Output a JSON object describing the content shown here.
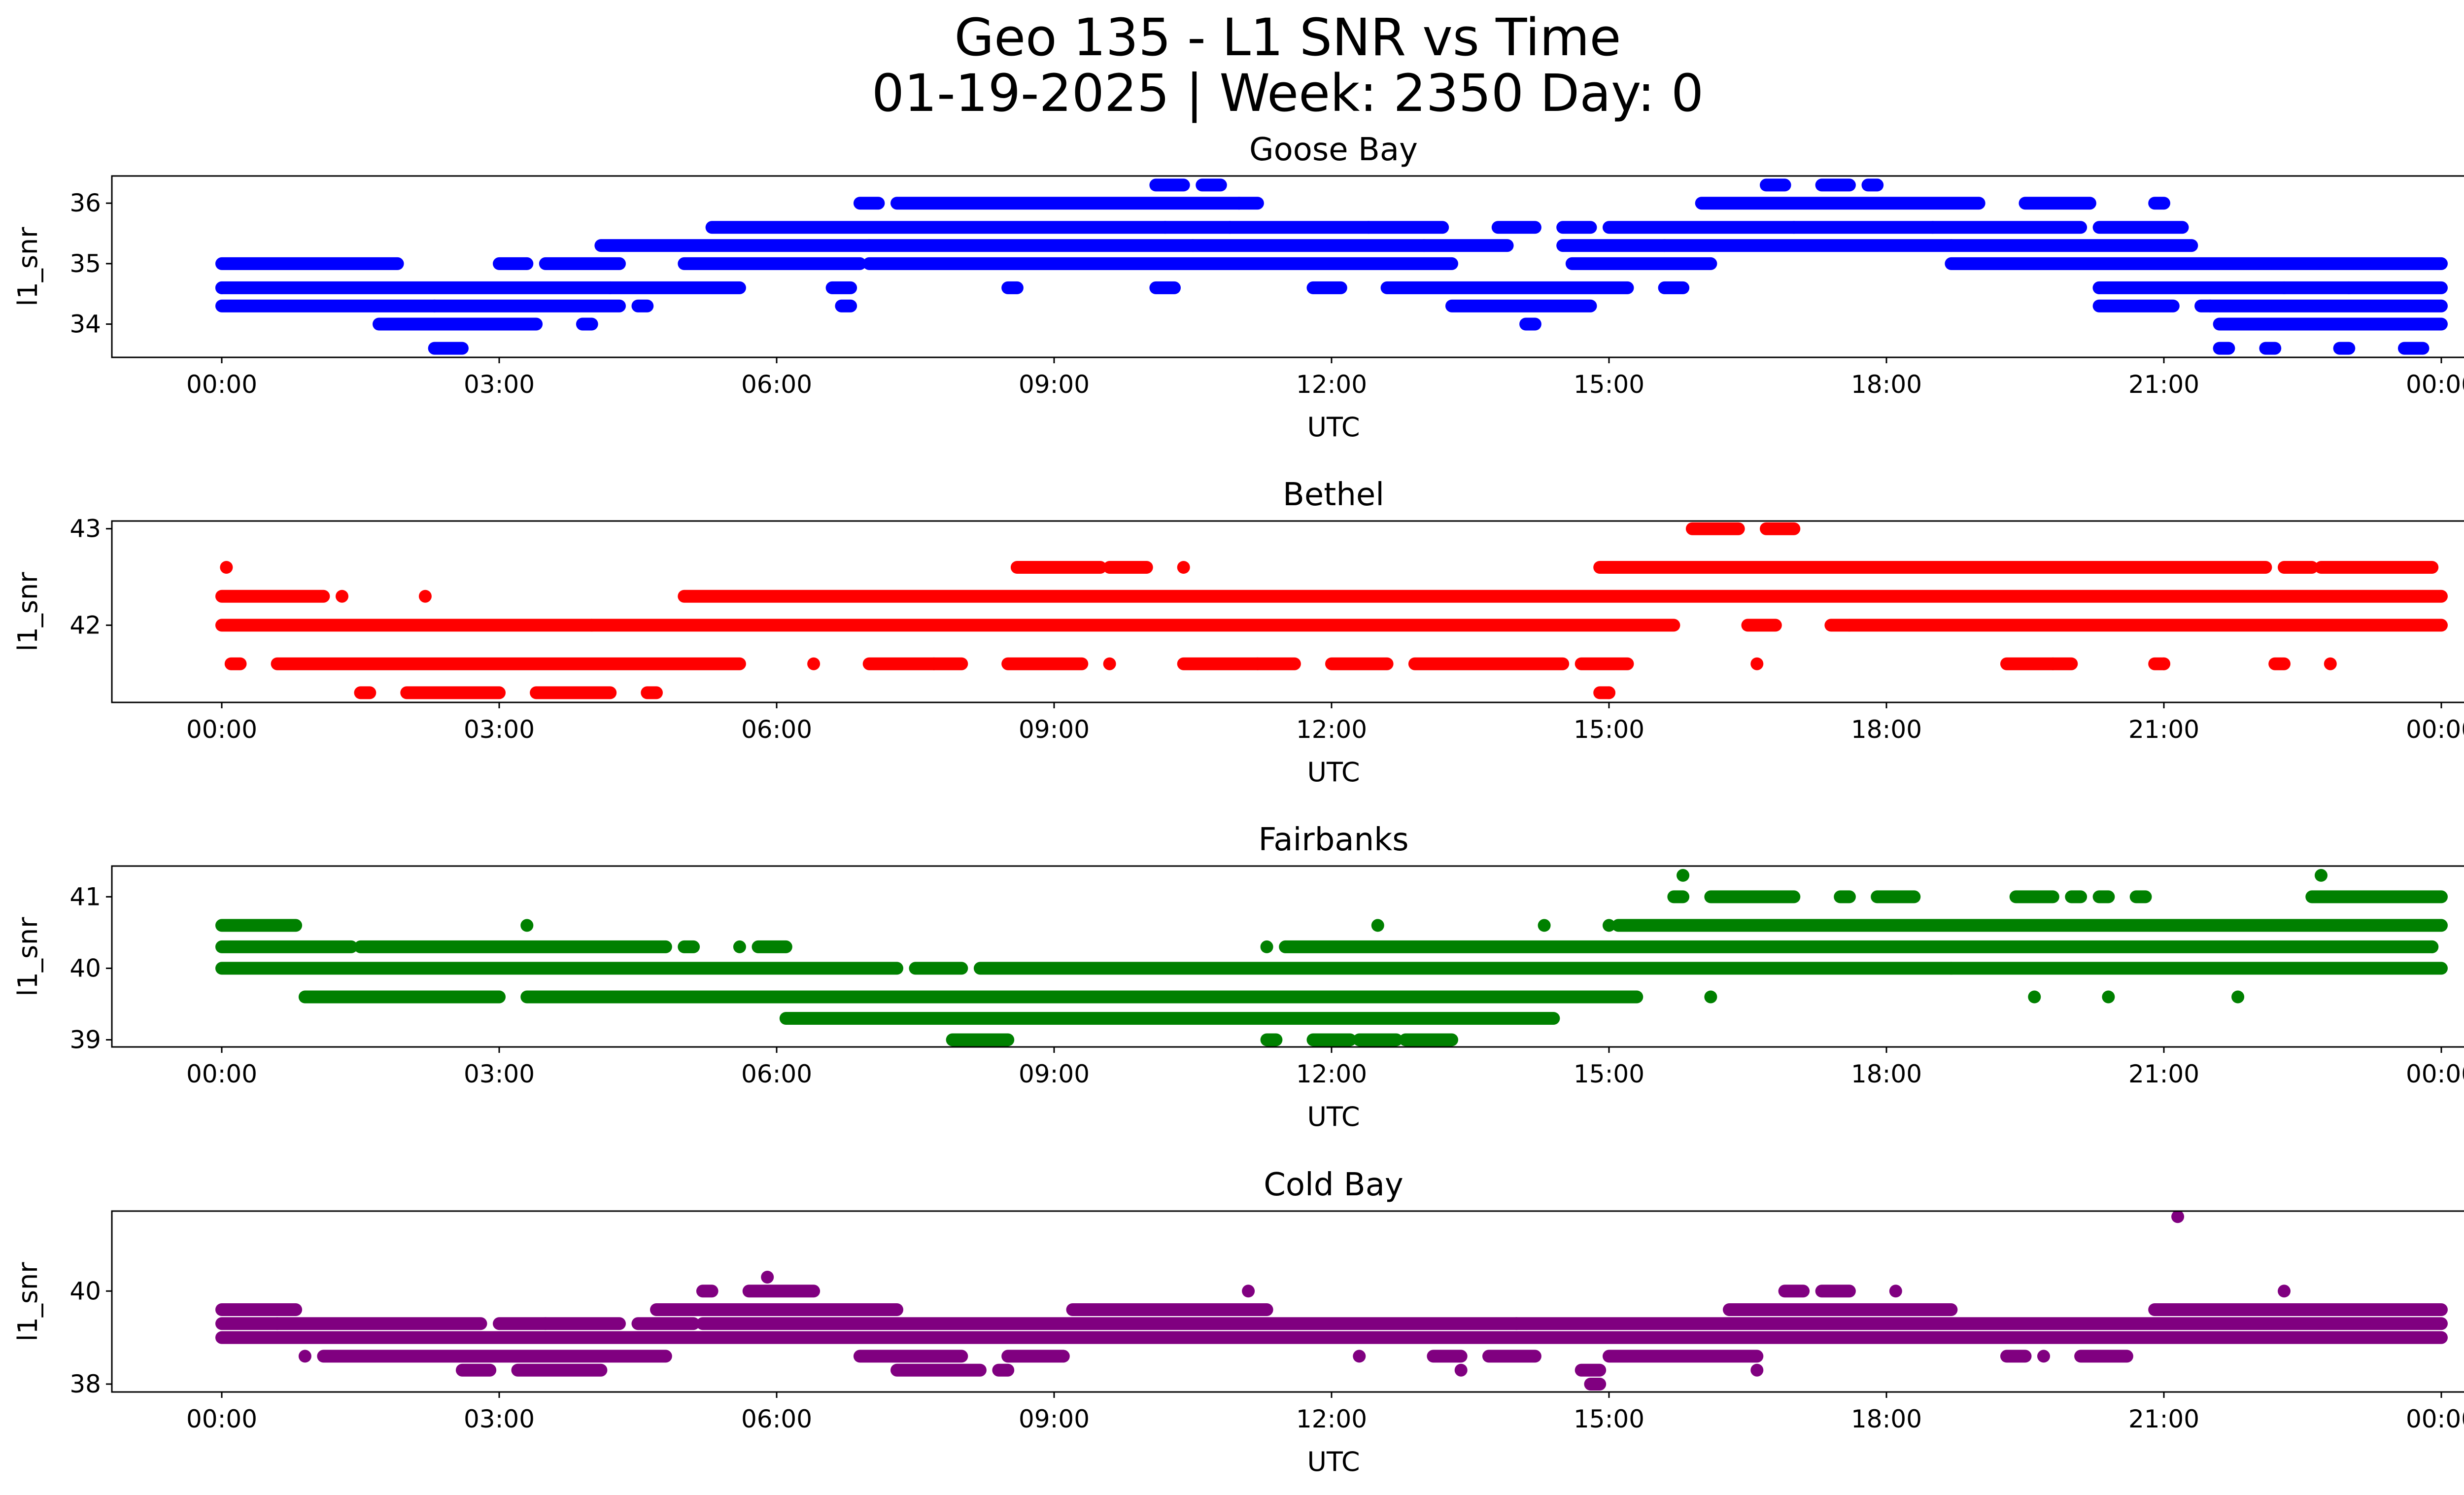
{
  "figure": {
    "title_line1": "Geo 135 - L1 SNR vs Time",
    "title_line2": "01-19-2025 | Week: 2350 Day: 0"
  },
  "chart_data": [
    {
      "type": "scatter",
      "title": "Goose Bay",
      "xlabel": "UTC",
      "ylabel": "l1_snr",
      "color": "#0000ff",
      "x_ticks": [
        "00:00",
        "03:00",
        "06:00",
        "09:00",
        "12:00",
        "15:00",
        "18:00",
        "21:00",
        "00:00"
      ],
      "y_ticks": [
        34,
        35,
        36
      ],
      "xlim": [
        0,
        24
      ],
      "ylim": [
        33.45,
        36.45
      ],
      "levels": [
        33.6,
        34.0,
        34.3,
        34.6,
        35.0,
        35.3,
        35.6,
        36.0,
        36.3
      ],
      "series": [
        {
          "x": [
            0.0,
            2.3,
            4.2,
            7.0,
            10.2,
            10.5,
            10.9,
            12.4,
            13.0,
            15.6,
            17.0,
            18.5,
            18.7,
            20.3,
            21.5,
            22.3,
            23.0
          ],
          "y": [
            34.6,
            34.3,
            34.6,
            35.3,
            35.6,
            35.3,
            35.6,
            35.6,
            35.3,
            35.3,
            35.6,
            35.6,
            35.3,
            34.6,
            34.3,
            34.6,
            34.6
          ]
        }
      ],
      "bands": [
        {
          "level": 35.0,
          "segments": [
            [
              0.0,
              1.9
            ],
            [
              3.0,
              3.3
            ],
            [
              3.5,
              4.3
            ],
            [
              5.0,
              6.9
            ],
            [
              7.0,
              13.3
            ],
            [
              14.6,
              16.1
            ],
            [
              18.7,
              24.0
            ]
          ]
        },
        {
          "level": 34.6,
          "segments": [
            [
              0.0,
              5.6
            ],
            [
              6.6,
              6.8
            ],
            [
              8.5,
              8.6
            ],
            [
              10.1,
              10.3
            ],
            [
              11.8,
              12.1
            ],
            [
              12.6,
              15.2
            ],
            [
              15.6,
              15.8
            ],
            [
              20.3,
              24.0
            ]
          ]
        },
        {
          "level": 34.3,
          "segments": [
            [
              0.0,
              4.3
            ],
            [
              4.5,
              4.6
            ],
            [
              6.7,
              6.8
            ],
            [
              13.3,
              14.8
            ],
            [
              20.3,
              21.1
            ],
            [
              21.4,
              24.0
            ]
          ]
        },
        {
          "level": 34.0,
          "segments": [
            [
              1.7,
              3.4
            ],
            [
              3.9,
              4.0
            ],
            [
              14.1,
              14.2
            ],
            [
              21.6,
              24.0
            ]
          ]
        },
        {
          "level": 35.3,
          "segments": [
            [
              4.1,
              13.9
            ],
            [
              14.5,
              21.3
            ]
          ]
        },
        {
          "level": 35.6,
          "segments": [
            [
              5.3,
              13.2
            ],
            [
              13.8,
              14.2
            ],
            [
              14.5,
              14.8
            ],
            [
              15.0,
              20.1
            ],
            [
              20.3,
              21.2
            ]
          ]
        },
        {
          "level": 36.0,
          "segments": [
            [
              6.9,
              7.1
            ],
            [
              7.3,
              11.0
            ],
            [
              11.0,
              11.2
            ],
            [
              16.0,
              19.0
            ],
            [
              19.5,
              20.2
            ],
            [
              20.9,
              21.0
            ]
          ]
        },
        {
          "level": 36.3,
          "segments": [
            [
              10.1,
              10.4
            ],
            [
              10.6,
              10.8
            ],
            [
              16.7,
              16.9
            ],
            [
              17.3,
              17.6
            ],
            [
              17.8,
              17.9
            ]
          ]
        },
        {
          "level": 33.6,
          "segments": [
            [
              2.3,
              2.6
            ],
            [
              21.6,
              21.7
            ],
            [
              22.1,
              22.2
            ],
            [
              22.9,
              23.0
            ],
            [
              23.6,
              23.8
            ]
          ]
        }
      ]
    },
    {
      "type": "scatter",
      "title": "Bethel",
      "xlabel": "UTC",
      "ylabel": "l1_snr",
      "color": "#ff0000",
      "x_ticks": [
        "00:00",
        "03:00",
        "06:00",
        "09:00",
        "12:00",
        "15:00",
        "18:00",
        "21:00",
        "00:00"
      ],
      "y_ticks": [
        42,
        43
      ],
      "xlim": [
        0,
        24
      ],
      "ylim": [
        41.2,
        43.08
      ],
      "levels": [
        41.3,
        41.6,
        42.0,
        42.3,
        42.6,
        43.0
      ],
      "series": [
        {
          "x": [
            0.05,
            1.3,
            2.2,
            4.0,
            6.4,
            7.7,
            9.6,
            10.4,
            11.2,
            15.0,
            16.6,
            17.6,
            19.8,
            21.0,
            22.8
          ],
          "y": [
            42.6,
            42.3,
            42.3,
            42.0,
            41.6,
            41.6,
            41.6,
            42.6,
            41.6,
            41.3,
            41.6,
            42.0,
            41.6,
            41.6,
            41.6
          ]
        }
      ],
      "bands": [
        {
          "level": 42.0,
          "segments": [
            [
              0.0,
              15.7
            ],
            [
              16.5,
              16.8
            ],
            [
              17.4,
              24.0
            ]
          ]
        },
        {
          "level": 42.3,
          "segments": [
            [
              0.0,
              1.1
            ],
            [
              5.0,
              24.0
            ]
          ]
        },
        {
          "level": 41.6,
          "segments": [
            [
              0.1,
              0.2
            ],
            [
              0.6,
              5.6
            ],
            [
              7.0,
              8.0
            ],
            [
              8.5,
              9.3
            ],
            [
              10.4,
              11.6
            ],
            [
              12.0,
              12.6
            ],
            [
              12.9,
              14.5
            ],
            [
              14.7,
              15.2
            ],
            [
              19.3,
              20.0
            ],
            [
              20.9,
              21.0
            ],
            [
              22.2,
              22.3
            ]
          ]
        },
        {
          "level": 42.6,
          "segments": [
            [
              8.6,
              9.5
            ],
            [
              9.6,
              10.0
            ],
            [
              14.9,
              22.1
            ],
            [
              22.3,
              22.6
            ],
            [
              22.7,
              23.9
            ]
          ]
        },
        {
          "level": 41.3,
          "segments": [
            [
              1.5,
              1.6
            ],
            [
              2.0,
              3.0
            ],
            [
              3.4,
              4.2
            ],
            [
              4.6,
              4.7
            ],
            [
              14.9,
              15.0
            ]
          ]
        },
        {
          "level": 43.0,
          "segments": [
            [
              15.9,
              16.4
            ],
            [
              16.7,
              17.0
            ]
          ]
        }
      ]
    },
    {
      "type": "scatter",
      "title": "Fairbanks",
      "xlabel": "UTC",
      "ylabel": "l1_snr",
      "color": "#008000",
      "x_ticks": [
        "00:00",
        "03:00",
        "06:00",
        "09:00",
        "12:00",
        "15:00",
        "18:00",
        "21:00",
        "00:00"
      ],
      "y_ticks": [
        39,
        40,
        41
      ],
      "xlim": [
        0,
        24
      ],
      "ylim": [
        38.9,
        41.43
      ],
      "levels": [
        39.0,
        39.3,
        39.6,
        40.0,
        40.3,
        40.6,
        41.0,
        41.3
      ],
      "series": [
        {
          "x": [
            3.3,
            5.6,
            11.3,
            12.5,
            14.3,
            15.0,
            15.8,
            16.1,
            18.7,
            19.6,
            20.4,
            21.8,
            22.7,
            23.9
          ],
          "y": [
            40.6,
            40.3,
            40.3,
            40.6,
            40.6,
            40.6,
            41.3,
            39.6,
            40.0,
            39.6,
            39.6,
            39.6,
            41.3,
            40.3
          ]
        }
      ],
      "bands": [
        {
          "level": 40.0,
          "segments": [
            [
              0.0,
              7.3
            ],
            [
              7.5,
              8.0
            ],
            [
              8.2,
              24.0
            ]
          ]
        },
        {
          "level": 40.3,
          "segments": [
            [
              0.0,
              1.4
            ],
            [
              1.5,
              4.8
            ],
            [
              5.0,
              5.1
            ],
            [
              5.8,
              6.1
            ],
            [
              11.5,
              23.9
            ]
          ]
        },
        {
          "level": 40.6,
          "segments": [
            [
              0.0,
              0.8
            ],
            [
              15.1,
              24.0
            ]
          ]
        },
        {
          "level": 39.6,
          "segments": [
            [
              0.9,
              3.0
            ],
            [
              3.3,
              15.3
            ]
          ]
        },
        {
          "level": 39.3,
          "segments": [
            [
              6.1,
              14.4
            ]
          ]
        },
        {
          "level": 39.0,
          "segments": [
            [
              7.9,
              8.5
            ],
            [
              11.3,
              11.4
            ],
            [
              11.8,
              12.2
            ],
            [
              12.3,
              12.7
            ],
            [
              12.8,
              13.3
            ]
          ]
        },
        {
          "level": 41.0,
          "segments": [
            [
              15.7,
              15.8
            ],
            [
              16.1,
              17.0
            ],
            [
              17.5,
              17.6
            ],
            [
              17.9,
              18.3
            ],
            [
              19.4,
              19.8
            ],
            [
              20.0,
              20.1
            ],
            [
              20.3,
              20.4
            ],
            [
              20.7,
              20.8
            ],
            [
              22.6,
              24.0
            ]
          ]
        }
      ]
    },
    {
      "type": "scatter",
      "title": "Cold Bay",
      "xlabel": "UTC",
      "ylabel": "l1_snr",
      "color": "#800080",
      "x_ticks": [
        "00:00",
        "03:00",
        "06:00",
        "09:00",
        "12:00",
        "15:00",
        "18:00",
        "21:00",
        "00:00"
      ],
      "y_ticks": [
        38,
        40
      ],
      "xlim": [
        0,
        24
      ],
      "ylim": [
        37.83,
        41.72
      ],
      "levels": [
        38.0,
        38.3,
        38.6,
        39.0,
        39.3,
        39.6,
        40.0,
        40.3,
        41.6
      ],
      "series": [
        {
          "x": [
            0.9,
            3.5,
            5.9,
            11.1,
            12.3,
            13.4,
            14.0,
            16.6,
            18.1,
            19.7,
            21.15,
            22.3
          ],
          "y": [
            38.6,
            39.3,
            40.3,
            40.0,
            38.6,
            38.3,
            39.3,
            38.3,
            40.0,
            38.6,
            41.6,
            40.0
          ]
        }
      ],
      "bands": [
        {
          "level": 39.0,
          "segments": [
            [
              0.0,
              24.0
            ]
          ]
        },
        {
          "level": 39.3,
          "segments": [
            [
              0.0,
              0.6
            ],
            [
              0.6,
              2.8
            ],
            [
              3.0,
              4.3
            ],
            [
              4.5,
              5.1
            ],
            [
              5.2,
              24.0
            ]
          ]
        },
        {
          "level": 39.6,
          "segments": [
            [
              0.0,
              0.8
            ],
            [
              4.7,
              7.3
            ],
            [
              9.2,
              11.3
            ],
            [
              16.3,
              18.7
            ],
            [
              20.9,
              24.0
            ]
          ]
        },
        {
          "level": 38.6,
          "segments": [
            [
              1.1,
              4.8
            ],
            [
              6.9,
              8.0
            ],
            [
              8.5,
              9.1
            ],
            [
              13.1,
              13.4
            ],
            [
              13.7,
              14.2
            ],
            [
              15.0,
              16.6
            ],
            [
              19.3,
              19.5
            ],
            [
              20.1,
              20.6
            ]
          ]
        },
        {
          "level": 38.3,
          "segments": [
            [
              2.6,
              2.9
            ],
            [
              3.2,
              4.1
            ],
            [
              7.3,
              8.2
            ],
            [
              8.4,
              8.5
            ],
            [
              14.7,
              14.9
            ]
          ]
        },
        {
          "level": 40.0,
          "segments": [
            [
              5.2,
              5.3
            ],
            [
              5.7,
              6.4
            ],
            [
              16.9,
              17.1
            ],
            [
              17.3,
              17.6
            ]
          ]
        },
        {
          "level": 38.0,
          "segments": [
            [
              14.8,
              14.9
            ]
          ]
        }
      ]
    }
  ]
}
